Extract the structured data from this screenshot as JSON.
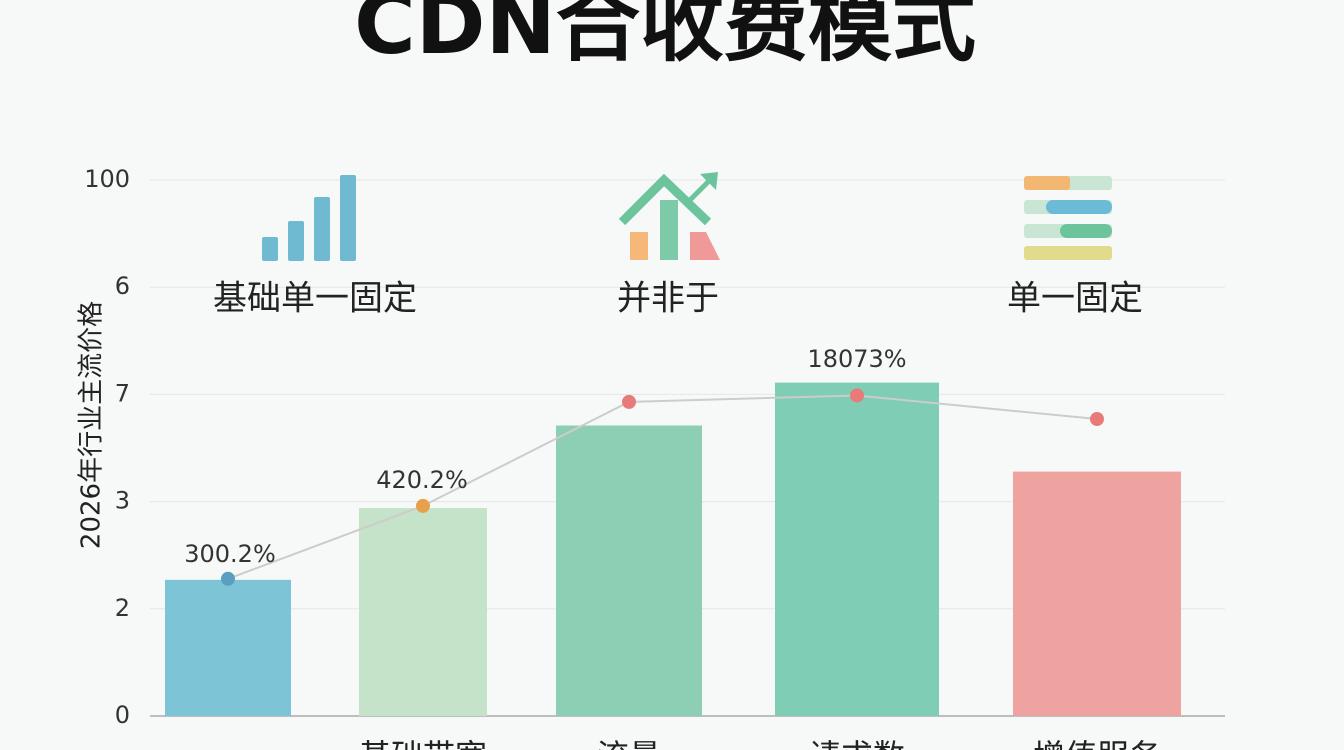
{
  "chart_data": {
    "type": "bar",
    "title": "CDN合收费模式",
    "y_label": "2026年行业主流价格",
    "categories": [
      null,
      "基础带宽",
      "流量",
      "请求数",
      "增值服务"
    ],
    "series": [
      {
        "type": "bar",
        "colors": [
          "#7cc4d6",
          "#c5e3c8",
          "#8ccfb4",
          "#80cdb5",
          "#eea3a0"
        ],
        "values": [
          1.27,
          1.94,
          2.71,
          3.11,
          2.28
        ]
      },
      {
        "type": "line",
        "color": "#cccccc",
        "marker_colors": [
          "#5a9ec0",
          "#e9a04c",
          "#e87a7a",
          "#e87a7a",
          "#e87a7a"
        ],
        "values": [
          1.28,
          1.96,
          2.93,
          2.99,
          2.77
        ]
      }
    ],
    "ylim": [
      0,
      5
    ],
    "yticks": [
      0,
      {
        "value": 1,
        "label": "2"
      },
      {
        "value": 2,
        "label": "3"
      },
      {
        "value": 3,
        "label": "7"
      },
      {
        "value": 4,
        "label": "6"
      },
      {
        "value": 5,
        "label": "100"
      }
    ],
    "grid": true,
    "annotations": [
      "300.2%",
      "420.2%",
      "18073%"
    ],
    "icon_labels": [
      "基础单一固定",
      "并非于",
      "单一固定"
    ]
  }
}
